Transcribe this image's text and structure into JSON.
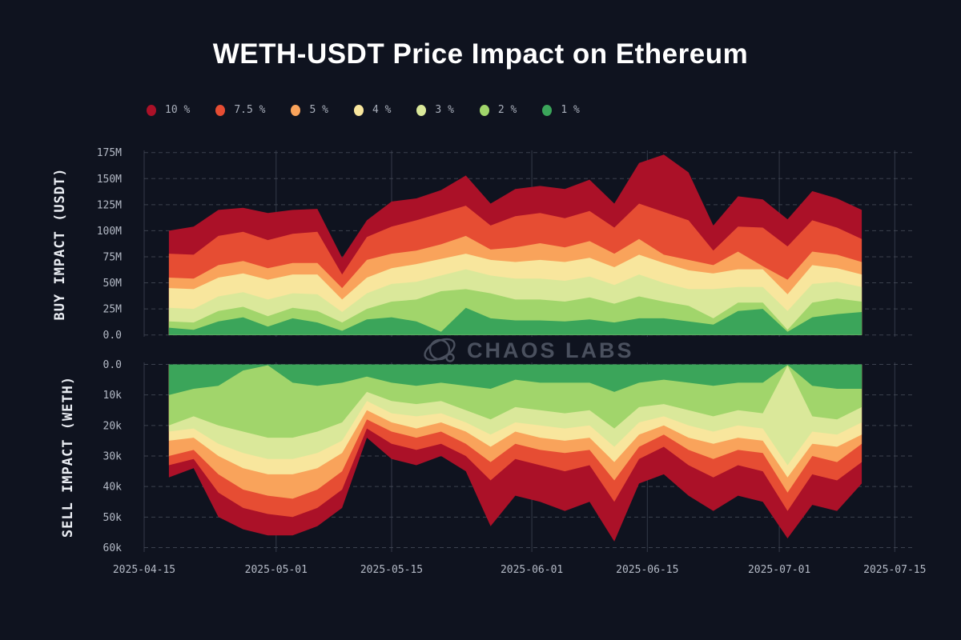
{
  "title": "WETH-USDT Price Impact on Ethereum",
  "watermark": {
    "text": "CHAOS LABS"
  },
  "colors": {
    "background": "#0f131f",
    "grid_dashed": "#4b515e",
    "grid_vertical": "#343a48",
    "tick_text": "#b4bac6",
    "axis_title_text": "#e9ecf2",
    "watermark": "#4a505e",
    "title_text": "#ffffff"
  },
  "legend": [
    {
      "label": "10 %",
      "color": "#ab1128"
    },
    {
      "label": "7.5 %",
      "color": "#e64d33"
    },
    {
      "label": "5 %",
      "color": "#f9a35b"
    },
    {
      "label": "4 %",
      "color": "#f8e69d"
    },
    {
      "label": "3 %",
      "color": "#dae89a"
    },
    {
      "label": "2 %",
      "color": "#a1d56b"
    },
    {
      "label": "1 %",
      "color": "#3ba55a"
    }
  ],
  "chart_data": {
    "type": "area",
    "title": "WETH-USDT Price Impact on Ethereum",
    "x_tick_labels": [
      "2025-04-15",
      "2025-05-01",
      "2025-05-15",
      "2025-06-01",
      "2025-06-15",
      "2025-07-01",
      "2025-07-15"
    ],
    "x_dates": [
      "2025-04-18",
      "2025-04-21",
      "2025-04-24",
      "2025-04-27",
      "2025-04-30",
      "2025-05-03",
      "2025-05-06",
      "2025-05-09",
      "2025-05-12",
      "2025-05-15",
      "2025-05-18",
      "2025-05-21",
      "2025-05-24",
      "2025-05-27",
      "2025-05-30",
      "2025-06-02",
      "2025-06-05",
      "2025-06-08",
      "2025-06-11",
      "2025-06-14",
      "2025-06-17",
      "2025-06-20",
      "2025-06-23",
      "2025-06-26",
      "2025-06-29",
      "2025-07-02",
      "2025-07-05",
      "2025-07-08",
      "2025-07-11"
    ],
    "buy": {
      "ylabel": "BUY IMPACT (USDT)",
      "unit": "millions USDT",
      "ylim": [
        0,
        175
      ],
      "grid": "horizontal-dashed",
      "y_ticks": [
        {
          "v": 175,
          "label": "175M"
        },
        {
          "v": 150,
          "label": "150M"
        },
        {
          "v": 125,
          "label": "125M"
        },
        {
          "v": 100,
          "label": "100M"
        },
        {
          "v": 75,
          "label": "75M"
        },
        {
          "v": 50,
          "label": "50M"
        },
        {
          "v": 25,
          "label": "25M"
        },
        {
          "v": 0,
          "label": "0.0"
        }
      ],
      "series": [
        {
          "name": "10 %",
          "values": [
            100,
            104,
            120,
            122,
            117,
            120,
            121,
            74,
            110,
            128,
            131,
            139,
            153,
            126,
            140,
            143,
            140,
            149,
            126,
            165,
            173,
            156,
            105,
            133,
            130,
            111,
            138,
            131,
            120
          ]
        },
        {
          "name": "7.5 %",
          "values": [
            78,
            77,
            95,
            99,
            91,
            97,
            99,
            58,
            94,
            104,
            110,
            117,
            124,
            105,
            114,
            117,
            112,
            119,
            103,
            126,
            118,
            110,
            81,
            104,
            103,
            85,
            110,
            103,
            92
          ]
        },
        {
          "name": "5 %",
          "values": [
            55,
            54,
            67,
            71,
            64,
            69,
            69,
            45,
            72,
            78,
            81,
            87,
            95,
            82,
            84,
            88,
            84,
            90,
            78,
            92,
            77,
            72,
            67,
            80,
            66,
            53,
            80,
            77,
            70
          ]
        },
        {
          "name": "4 %",
          "values": [
            45,
            44,
            55,
            59,
            53,
            58,
            58,
            34,
            55,
            64,
            68,
            73,
            78,
            72,
            70,
            72,
            70,
            74,
            65,
            77,
            69,
            62,
            59,
            63,
            63,
            39,
            67,
            64,
            58
          ]
        },
        {
          "name": "3 %",
          "values": [
            26,
            25,
            37,
            41,
            34,
            40,
            39,
            22,
            40,
            49,
            51,
            57,
            63,
            57,
            54,
            54,
            52,
            56,
            48,
            58,
            50,
            44,
            44,
            46,
            46,
            23,
            49,
            51,
            46
          ]
        },
        {
          "name": "2 %",
          "values": [
            13,
            12,
            23,
            27,
            18,
            26,
            23,
            12,
            25,
            32,
            34,
            42,
            44,
            40,
            34,
            34,
            32,
            36,
            30,
            37,
            32,
            28,
            16,
            31,
            31,
            5,
            31,
            35,
            32
          ]
        },
        {
          "name": "1 %",
          "values": [
            7,
            5,
            13,
            17,
            8,
            16,
            12,
            4,
            15,
            17,
            13,
            3,
            26,
            16,
            14,
            14,
            13,
            15,
            12,
            16,
            16,
            13,
            10,
            23,
            25,
            3,
            17,
            20,
            22
          ]
        }
      ]
    },
    "sell": {
      "ylabel": "SELL IMPACT (WETH)",
      "unit": "thousands WETH",
      "inverted": true,
      "ylim": [
        0,
        60
      ],
      "grid": "horizontal-dashed",
      "y_ticks": [
        {
          "v": 0,
          "label": "0.0"
        },
        {
          "v": 10,
          "label": "10k"
        },
        {
          "v": 20,
          "label": "20k"
        },
        {
          "v": 30,
          "label": "30k"
        },
        {
          "v": 40,
          "label": "40k"
        },
        {
          "v": 50,
          "label": "50k"
        },
        {
          "v": 60,
          "label": "60k"
        }
      ],
      "series": [
        {
          "name": "10 %",
          "values": [
            37,
            34,
            50,
            54,
            56,
            56,
            53,
            47,
            24,
            31,
            33,
            30,
            35,
            53,
            43,
            45,
            48,
            45,
            58,
            39,
            36,
            43,
            48,
            43,
            45,
            57,
            46,
            48,
            39
          ]
        },
        {
          "name": "7.5 %",
          "values": [
            33,
            31,
            42,
            47,
            49,
            50,
            47,
            41,
            21,
            26,
            28,
            26,
            30,
            38,
            31,
            33,
            35,
            33,
            45,
            31,
            27,
            33,
            37,
            33,
            35,
            48,
            36,
            38,
            32
          ]
        },
        {
          "name": "5 %",
          "values": [
            30,
            28,
            36,
            41,
            43,
            44,
            41,
            35,
            18,
            22,
            24,
            22,
            26,
            32,
            26,
            28,
            29,
            28,
            38,
            27,
            23,
            28,
            31,
            28,
            29,
            42,
            30,
            32,
            26
          ]
        },
        {
          "name": "4 %",
          "values": [
            25,
            24,
            30,
            34,
            36,
            36,
            34,
            29,
            15,
            19,
            21,
            19,
            22,
            27,
            22,
            24,
            25,
            24,
            32,
            23,
            20,
            24,
            26,
            24,
            25,
            37,
            26,
            27,
            23
          ]
        },
        {
          "name": "3 %",
          "values": [
            22,
            21,
            26,
            29,
            31,
            31,
            29,
            25,
            12,
            16,
            17,
            16,
            19,
            23,
            19,
            20,
            21,
            20,
            27,
            19,
            17,
            20,
            22,
            20,
            21,
            33,
            22,
            23,
            19
          ]
        },
        {
          "name": "2 %",
          "values": [
            20,
            17,
            20,
            22,
            24,
            24,
            22,
            19,
            9,
            12,
            13,
            12,
            15,
            18,
            14,
            15,
            16,
            15,
            21,
            14,
            13,
            15,
            17,
            15,
            16,
            0.4,
            17,
            18,
            14
          ]
        },
        {
          "name": "1 %",
          "values": [
            10,
            8,
            7,
            2,
            0.3,
            6,
            7,
            6,
            4,
            6,
            7,
            6,
            7,
            8,
            5,
            6,
            6,
            6,
            9,
            6,
            5,
            6,
            7,
            6,
            6,
            0.2,
            7,
            8,
            8
          ]
        }
      ]
    }
  }
}
